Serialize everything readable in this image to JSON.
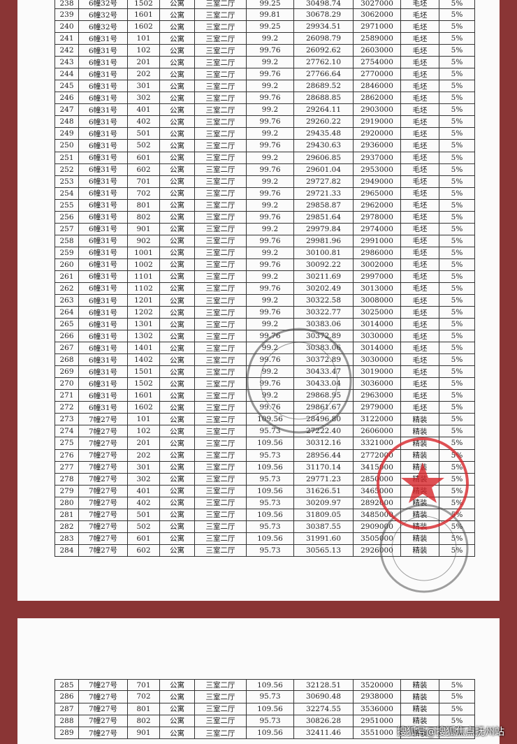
{
  "pages": [
    {
      "rows": [
        [
          "238",
          "6幢32号",
          "1502",
          "公寓",
          "三室二厅",
          "99.25",
          "30498.74",
          "3027000",
          "毛坯",
          "5%"
        ],
        [
          "239",
          "6幢32号",
          "1601",
          "公寓",
          "三室二厅",
          "99.81",
          "30678.29",
          "3062000",
          "毛坯",
          "5%"
        ],
        [
          "240",
          "6幢32号",
          "1602",
          "公寓",
          "三室二厅",
          "99.25",
          "29934.51",
          "2971000",
          "毛坯",
          "5%"
        ],
        [
          "241",
          "6幢31号",
          "101",
          "公寓",
          "三室二厅",
          "99.2",
          "26098.79",
          "2589000",
          "毛坯",
          "5%"
        ],
        [
          "242",
          "6幢31号",
          "102",
          "公寓",
          "三室二厅",
          "99.76",
          "26092.62",
          "2603000",
          "毛坯",
          "5%"
        ],
        [
          "243",
          "6幢31号",
          "201",
          "公寓",
          "三室二厅",
          "99.2",
          "27762.10",
          "2754000",
          "毛坯",
          "5%"
        ],
        [
          "244",
          "6幢31号",
          "202",
          "公寓",
          "三室二厅",
          "99.76",
          "27766.64",
          "2770000",
          "毛坯",
          "5%"
        ],
        [
          "245",
          "6幢31号",
          "301",
          "公寓",
          "三室二厅",
          "99.2",
          "28689.52",
          "2846000",
          "毛坯",
          "5%"
        ],
        [
          "246",
          "6幢31号",
          "302",
          "公寓",
          "三室二厅",
          "99.76",
          "28688.85",
          "2862000",
          "毛坯",
          "5%"
        ],
        [
          "247",
          "6幢31号",
          "401",
          "公寓",
          "三室二厅",
          "99.2",
          "29264.11",
          "2903000",
          "毛坯",
          "5%"
        ],
        [
          "248",
          "6幢31号",
          "402",
          "公寓",
          "三室二厅",
          "99.76",
          "29260.22",
          "2919000",
          "毛坯",
          "5%"
        ],
        [
          "249",
          "6幢31号",
          "501",
          "公寓",
          "三室二厅",
          "99.2",
          "29435.48",
          "2920000",
          "毛坯",
          "5%"
        ],
        [
          "250",
          "6幢31号",
          "502",
          "公寓",
          "三室二厅",
          "99.76",
          "29430.63",
          "2936000",
          "毛坯",
          "5%"
        ],
        [
          "251",
          "6幢31号",
          "601",
          "公寓",
          "三室二厅",
          "99.2",
          "29606.85",
          "2937000",
          "毛坯",
          "5%"
        ],
        [
          "252",
          "6幢31号",
          "602",
          "公寓",
          "三室二厅",
          "99.76",
          "29601.04",
          "2953000",
          "毛坯",
          "5%"
        ],
        [
          "253",
          "6幢31号",
          "701",
          "公寓",
          "三室二厅",
          "99.2",
          "29727.82",
          "2949000",
          "毛坯",
          "5%"
        ],
        [
          "254",
          "6幢31号",
          "702",
          "公寓",
          "三室二厅",
          "99.76",
          "29721.33",
          "2965000",
          "毛坯",
          "5%"
        ],
        [
          "255",
          "6幢31号",
          "801",
          "公寓",
          "三室二厅",
          "99.2",
          "29858.87",
          "2962000",
          "毛坯",
          "5%"
        ],
        [
          "256",
          "6幢31号",
          "802",
          "公寓",
          "三室二厅",
          "99.76",
          "29851.64",
          "2978000",
          "毛坯",
          "5%"
        ],
        [
          "257",
          "6幢31号",
          "901",
          "公寓",
          "三室二厅",
          "99.2",
          "29979.84",
          "2974000",
          "毛坯",
          "5%"
        ],
        [
          "258",
          "6幢31号",
          "902",
          "公寓",
          "三室二厅",
          "99.76",
          "29981.96",
          "2991000",
          "毛坯",
          "5%"
        ],
        [
          "259",
          "6幢31号",
          "1001",
          "公寓",
          "三室二厅",
          "99.2",
          "30100.81",
          "2986000",
          "毛坯",
          "5%"
        ],
        [
          "260",
          "6幢31号",
          "1002",
          "公寓",
          "三室二厅",
          "99.76",
          "30092.22",
          "3002000",
          "毛坯",
          "5%"
        ],
        [
          "261",
          "6幢31号",
          "1101",
          "公寓",
          "三室二厅",
          "99.2",
          "30211.69",
          "2997000",
          "毛坯",
          "5%"
        ],
        [
          "262",
          "6幢31号",
          "1102",
          "公寓",
          "三室二厅",
          "99.76",
          "30202.49",
          "3013000",
          "毛坯",
          "5%"
        ],
        [
          "263",
          "6幢31号",
          "1201",
          "公寓",
          "三室二厅",
          "99.2",
          "30322.58",
          "3008000",
          "毛坯",
          "5%"
        ],
        [
          "264",
          "6幢31号",
          "1202",
          "公寓",
          "三室二厅",
          "99.76",
          "30322.77",
          "3025000",
          "毛坯",
          "5%"
        ],
        [
          "265",
          "6幢31号",
          "1301",
          "公寓",
          "三室二厅",
          "99.2",
          "30383.06",
          "3014000",
          "毛坯",
          "5%"
        ],
        [
          "266",
          "6幢31号",
          "1302",
          "公寓",
          "三室二厅",
          "99.76",
          "30372.89",
          "3030000",
          "毛坯",
          "5%"
        ],
        [
          "267",
          "6幢31号",
          "1401",
          "公寓",
          "三室二厅",
          "99.2",
          "30383.06",
          "3014000",
          "毛坯",
          "5%"
        ],
        [
          "268",
          "6幢31号",
          "1402",
          "公寓",
          "三室二厅",
          "99.76",
          "30372.89",
          "3030000",
          "毛坯",
          "5%"
        ],
        [
          "269",
          "6幢31号",
          "1501",
          "公寓",
          "三室二厅",
          "99.2",
          "30433.47",
          "3019000",
          "毛坯",
          "5%"
        ],
        [
          "270",
          "6幢31号",
          "1502",
          "公寓",
          "三室二厅",
          "99.76",
          "30433.04",
          "3036000",
          "毛坯",
          "5%"
        ],
        [
          "271",
          "6幢31号",
          "1601",
          "公寓",
          "三室二厅",
          "99.2",
          "29868.95",
          "2963000",
          "毛坯",
          "5%"
        ],
        [
          "272",
          "6幢31号",
          "1602",
          "公寓",
          "三室二厅",
          "99.76",
          "29861.67",
          "2979000",
          "毛坯",
          "5%"
        ],
        [
          "273",
          "7幢27号",
          "101",
          "公寓",
          "三室二厅",
          "109.56",
          "28496.80",
          "3122000",
          "精装",
          "5%"
        ],
        [
          "274",
          "7幢27号",
          "102",
          "公寓",
          "三室二厅",
          "95.73",
          "27222.40",
          "2606000",
          "精装",
          "5%"
        ],
        [
          "275",
          "7幢27号",
          "201",
          "公寓",
          "三室二厅",
          "109.56",
          "30312.16",
          "3321000",
          "精装",
          "5%"
        ],
        [
          "276",
          "7幢27号",
          "202",
          "公寓",
          "三室二厅",
          "95.73",
          "28956.44",
          "2772000",
          "精装",
          "5%"
        ],
        [
          "277",
          "7幢27号",
          "301",
          "公寓",
          "三室二厅",
          "109.56",
          "31170.14",
          "3415000",
          "精装",
          "5%"
        ],
        [
          "278",
          "7幢27号",
          "302",
          "公寓",
          "三室二厅",
          "95.73",
          "29771.23",
          "2850000",
          "精装",
          "5%"
        ],
        [
          "279",
          "7幢27号",
          "401",
          "公寓",
          "三室二厅",
          "109.56",
          "31626.51",
          "3465000",
          "精装",
          "5%"
        ],
        [
          "280",
          "7幢27号",
          "402",
          "公寓",
          "三室二厅",
          "95.73",
          "30209.97",
          "2892000",
          "精装",
          "5%"
        ],
        [
          "281",
          "7幢27号",
          "501",
          "公寓",
          "三室二厅",
          "109.56",
          "31809.05",
          "3485000",
          "精装",
          "5%"
        ],
        [
          "282",
          "7幢27号",
          "502",
          "公寓",
          "三室二厅",
          "95.73",
          "30387.55",
          "2909000",
          "精装",
          "5%"
        ],
        [
          "283",
          "7幢27号",
          "601",
          "公寓",
          "三室二厅",
          "109.56",
          "31991.60",
          "3505000",
          "精装",
          "5%"
        ],
        [
          "284",
          "7幢27号",
          "602",
          "公寓",
          "三室二厅",
          "95.73",
          "30565.13",
          "2926000",
          "精装",
          "5%"
        ]
      ]
    },
    {
      "rows": [
        [
          "285",
          "7幢27号",
          "701",
          "公寓",
          "三室二厅",
          "109.56",
          "32128.51",
          "3520000",
          "精装",
          "5%"
        ],
        [
          "286",
          "7幢27号",
          "702",
          "公寓",
          "三室二厅",
          "95.73",
          "30690.48",
          "2938000",
          "精装",
          "5%"
        ],
        [
          "287",
          "7幢27号",
          "801",
          "公寓",
          "三室二厅",
          "109.56",
          "32274.55",
          "3536000",
          "精装",
          "5%"
        ],
        [
          "288",
          "7幢27号",
          "802",
          "公寓",
          "三室二厅",
          "95.73",
          "30826.28",
          "2951000",
          "精装",
          "5%"
        ],
        [
          "289",
          "7幢27号",
          "901",
          "公寓",
          "三室二厅",
          "109.56",
          "32411.46",
          "3551000",
          "精装",
          "5%"
        ]
      ]
    }
  ],
  "watermark": "搜狐号@搜狐焦点抚州站"
}
